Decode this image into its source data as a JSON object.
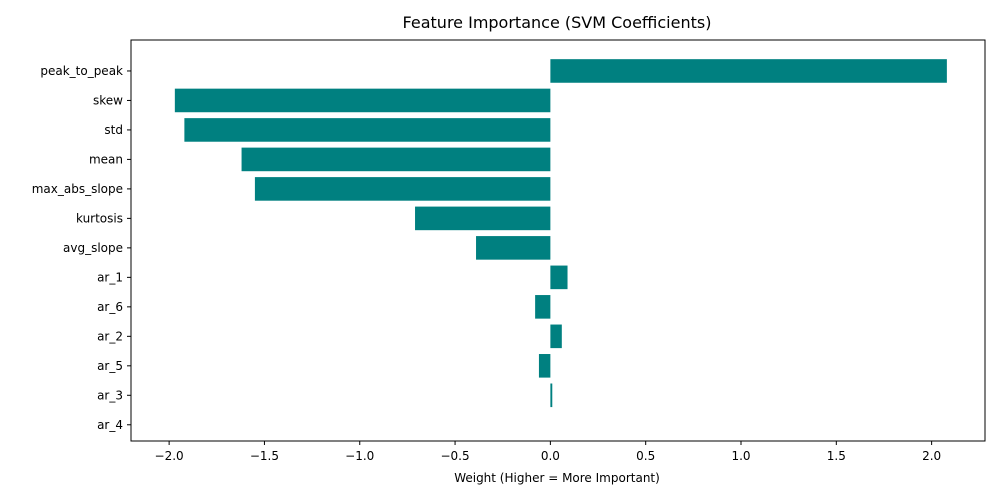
{
  "chart_data": {
    "type": "bar",
    "orientation": "horizontal",
    "title": "Feature Importance (SVM Coefficients)",
    "xlabel": "Weight (Higher = More Important)",
    "ylabel": "",
    "categories": [
      "peak_to_peak",
      "skew",
      "std",
      "mean",
      "max_abs_slope",
      "kurtosis",
      "avg_slope",
      "ar_1",
      "ar_6",
      "ar_2",
      "ar_5",
      "ar_3",
      "ar_4"
    ],
    "values": [
      2.08,
      -1.97,
      -1.92,
      -1.62,
      -1.55,
      -0.71,
      -0.39,
      0.09,
      -0.08,
      0.06,
      -0.06,
      0.01,
      0.0
    ],
    "xlim": [
      -2.2,
      2.28
    ],
    "xticks": [
      -2.0,
      -1.5,
      -1.0,
      -0.5,
      0.0,
      0.5,
      1.0,
      1.5,
      2.0
    ],
    "xtick_labels": [
      "−2.0",
      "−1.5",
      "−1.0",
      "−0.5",
      "0.0",
      "0.5",
      "1.0",
      "1.5",
      "2.0"
    ],
    "bar_color": "#008080",
    "grid": false,
    "legend": "none"
  }
}
